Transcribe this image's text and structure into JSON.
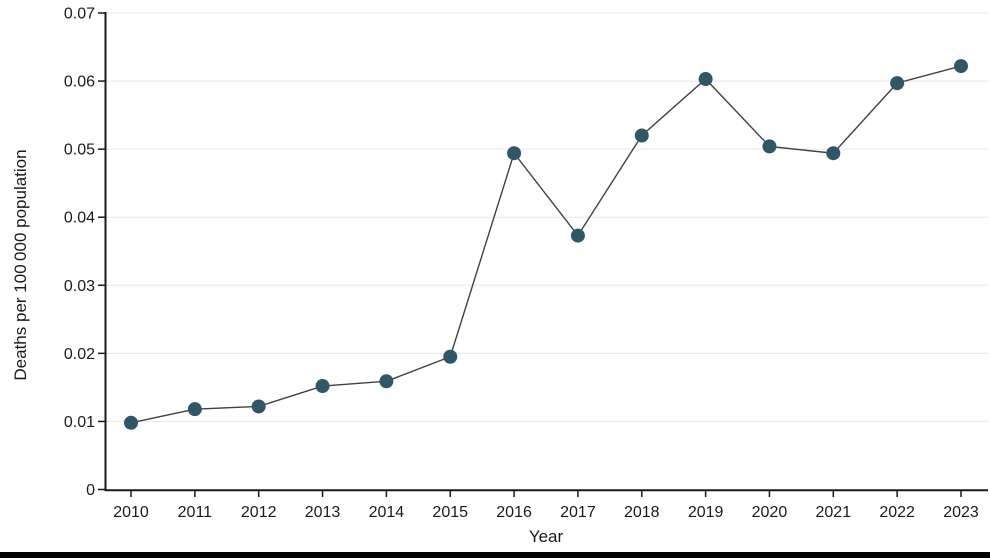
{
  "chart_data": {
    "type": "line",
    "title": "",
    "xlabel": "Year",
    "ylabel": "Deaths per 100 000 population",
    "x": [
      2010,
      2011,
      2012,
      2013,
      2014,
      2015,
      2016,
      2017,
      2018,
      2019,
      2020,
      2021,
      2022,
      2023
    ],
    "x_labels": [
      "2010",
      "2011",
      "2012",
      "2013",
      "2014",
      "2015",
      "2016",
      "2017",
      "2018",
      "2019",
      "2020",
      "2021",
      "2022",
      "2023"
    ],
    "series": [
      {
        "name": "Deaths per 100 000 population",
        "values": [
          0.0098,
          0.0118,
          0.0122,
          0.0152,
          0.0159,
          0.0195,
          0.0494,
          0.0373,
          0.052,
          0.0603,
          0.0504,
          0.0494,
          0.0597,
          0.0622
        ]
      }
    ],
    "ylim": [
      0,
      0.07
    ],
    "yticks": [
      0,
      0.01,
      0.02,
      0.03,
      0.04,
      0.05,
      0.06,
      0.07
    ],
    "ytick_labels": [
      "0",
      "0.01",
      "0.02",
      "0.03",
      "0.04",
      "0.05",
      "0.06",
      "0.07"
    ],
    "grid": "horizontal",
    "legend": "none",
    "marker": {
      "shape": "circle",
      "radius": 7
    },
    "colors": {
      "marker": "#2e5768",
      "line": "#404040",
      "grid": "#e7e7e7",
      "axis": "#1a1a1a",
      "text": "#1a1a1a",
      "bottom_rule": "#000000",
      "background": "#ffffff"
    }
  }
}
